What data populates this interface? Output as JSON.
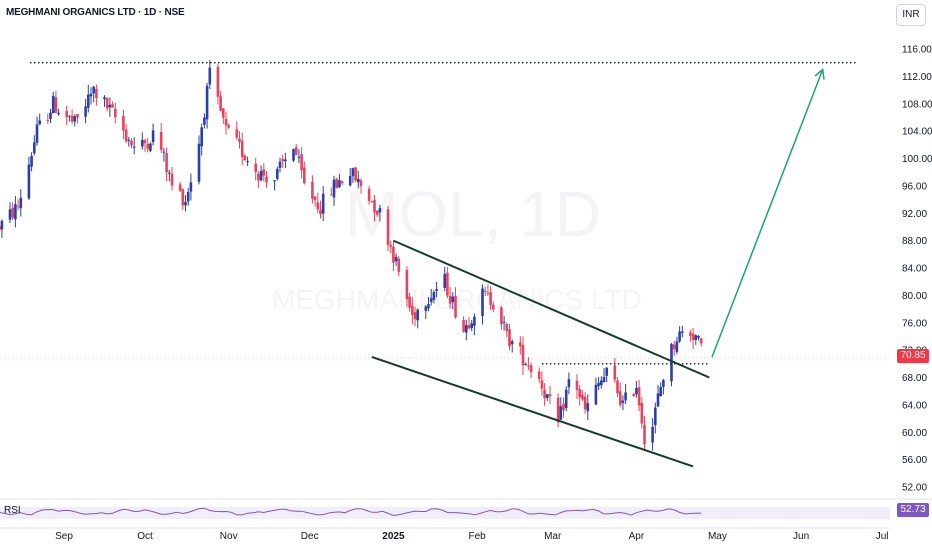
{
  "header": {
    "title": "MEGHMANI ORGANICS LTD · 1D · NSE",
    "currency": "INR"
  },
  "watermark": {
    "symbol": "MOL, 1D",
    "name": "MEGHMANI ORGANICS LTD"
  },
  "rsi": {
    "label": "RSI",
    "value": "52.73"
  },
  "last_price_label": "70.85",
  "colors": {
    "up": "#2a3fa8",
    "down": "#e8435c",
    "trend_lines": "#123d2a",
    "target_arrow": "#1aa37a",
    "rsi_line": "#7e57c2"
  },
  "chart_data": {
    "type": "candlestick",
    "ylim": [
      52,
      116
    ],
    "y_ticks": [
      "116.00",
      "112.00",
      "108.00",
      "104.00",
      "100.00",
      "96.00",
      "92.00",
      "88.00",
      "84.00",
      "80.00",
      "76.00",
      "72.00",
      "68.00",
      "64.00",
      "60.00",
      "56.00",
      "52.00"
    ],
    "x_ticks": [
      {
        "label": "Sep",
        "date": "2024-09-01"
      },
      {
        "label": "Oct",
        "date": "2024-10-01"
      },
      {
        "label": "Nov",
        "date": "2024-11-01"
      },
      {
        "label": "Dec",
        "date": "2024-12-01"
      },
      {
        "label": "2025",
        "date": "2025-01-01"
      },
      {
        "label": "Feb",
        "date": "2025-02-01"
      },
      {
        "label": "Mar",
        "date": "2025-03-01"
      },
      {
        "label": "Apr",
        "date": "2025-04-01"
      },
      {
        "label": "May",
        "date": "2025-05-01"
      },
      {
        "label": "Jun",
        "date": "2025-06-01"
      },
      {
        "label": "Jul",
        "date": "2025-07-01"
      }
    ],
    "price_path": [
      [
        "2024-08-08",
        90
      ],
      [
        "2024-08-15",
        93
      ],
      [
        "2024-08-22",
        104
      ],
      [
        "2024-08-28",
        108
      ],
      [
        "2024-09-05",
        105
      ],
      [
        "2024-09-12",
        110
      ],
      [
        "2024-09-20",
        106
      ],
      [
        "2024-09-28",
        101
      ],
      [
        "2024-10-05",
        104
      ],
      [
        "2024-10-11",
        96
      ],
      [
        "2024-10-16",
        94
      ],
      [
        "2024-10-20",
        100
      ],
      [
        "2024-10-25",
        112
      ],
      [
        "2024-10-31",
        104
      ],
      [
        "2024-11-06",
        101
      ],
      [
        "2024-11-12",
        98
      ],
      [
        "2024-11-18",
        97
      ],
      [
        "2024-11-25",
        102
      ],
      [
        "2024-11-29",
        96
      ],
      [
        "2024-12-05",
        93
      ],
      [
        "2024-12-10",
        96
      ],
      [
        "2024-12-16",
        98
      ],
      [
        "2024-12-22",
        95
      ],
      [
        "2024-12-27",
        92
      ],
      [
        "2025-01-01",
        86
      ],
      [
        "2025-01-04",
        82
      ],
      [
        "2025-01-08",
        77
      ],
      [
        "2025-01-14",
        80
      ],
      [
        "2025-01-20",
        82
      ],
      [
        "2025-01-27",
        75
      ],
      [
        "2025-02-03",
        80
      ],
      [
        "2025-02-08",
        79
      ],
      [
        "2025-02-12",
        74
      ],
      [
        "2025-02-18",
        71
      ],
      [
        "2025-02-24",
        68
      ],
      [
        "2025-03-03",
        61
      ],
      [
        "2025-03-08",
        69
      ],
      [
        "2025-03-13",
        63
      ],
      [
        "2025-03-18",
        67
      ],
      [
        "2025-03-22",
        69
      ],
      [
        "2025-03-27",
        64
      ],
      [
        "2025-04-01",
        67
      ],
      [
        "2025-04-05",
        57
      ],
      [
        "2025-04-09",
        65
      ],
      [
        "2025-04-12",
        70
      ],
      [
        "2025-04-16",
        74
      ],
      [
        "2025-04-20",
        75
      ],
      [
        "2025-04-23",
        74
      ],
      [
        "2025-04-25",
        72
      ],
      [
        "2025-04-26",
        70.85
      ]
    ],
    "resistance_level": 114,
    "breakout_level": 70,
    "channel_upper": [
      [
        "2025-01-01",
        88
      ],
      [
        "2025-04-28",
        68
      ]
    ],
    "channel_lower": [
      [
        "2024-12-24",
        71
      ],
      [
        "2025-04-22",
        55
      ]
    ],
    "target_arrow": [
      [
        "2025-04-29",
        71
      ],
      [
        "2025-06-09",
        113
      ]
    ],
    "last_price": 70.85,
    "rsi_last": 52.73
  }
}
